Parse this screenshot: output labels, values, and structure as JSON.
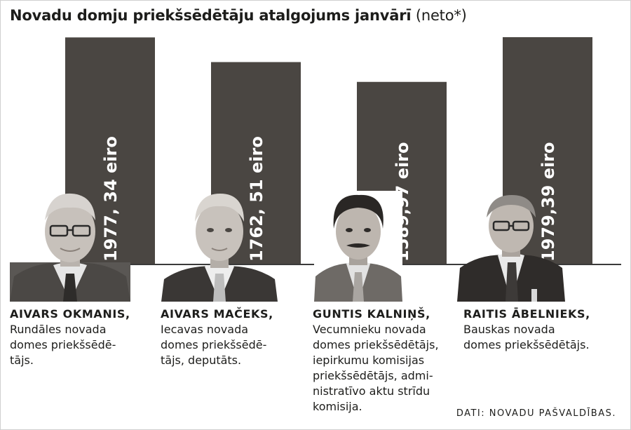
{
  "title": {
    "main": "Novadu domju priekšsēdētāju atalgojums janvārī",
    "sub": "(neto*)"
  },
  "chart_data": {
    "type": "bar",
    "categories": [
      "AIVARS OKMANIS",
      "AIVARS MAČEKS",
      "GUNTIS KALNIŅŠ",
      "RAITIS ĀBELNIEKS"
    ],
    "values": [
      1977.34,
      1762.51,
      1589.97,
      1979.39
    ],
    "value_labels": [
      "1977, 34 eiro",
      "1762, 51 eiro",
      "1589,97 eiro",
      "1979,39 eiro"
    ],
    "unit": "eiro",
    "bar_color": "#4a4642",
    "axis_color": "#3a3a3a"
  },
  "people": [
    {
      "name": "AIVARS OKMANIS,",
      "role": [
        "Rundāles novada",
        "domes priekšsēdē-",
        "tājs."
      ]
    },
    {
      "name": "AIVARS MAČEKS,",
      "role": [
        "Iecavas novada",
        "domes priekšsēdē-",
        "tājs, deputāts."
      ]
    },
    {
      "name": "GUNTIS KALNIŅŠ,",
      "role": [
        "Vecumnieku novada",
        "domes priekšsēdētājs,",
        "iepirkumu komisijas",
        "priekšsēdētājs, admi-",
        "nistratīvo aktu strīdu",
        "komisija."
      ]
    },
    {
      "name": "RAITIS ĀBELNIEKS,",
      "role": [
        "Bauskas novada",
        "domes priekšsēdētājs."
      ]
    }
  ],
  "source": "DATI: NOVADU PAŠVALDĪBAS."
}
